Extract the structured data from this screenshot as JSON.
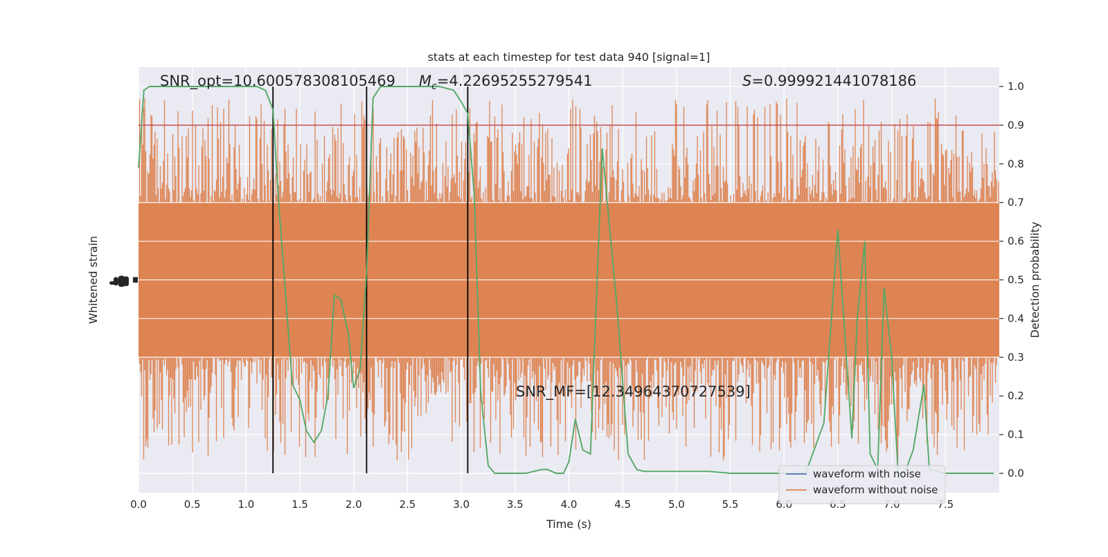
{
  "chart_data": {
    "type": "line",
    "title": "stats at each timestep for test data 940 [signal=1]",
    "xlabel": "Time (s)",
    "ylabel_left": "Whitened strain",
    "ylabel_right": "Detection probability",
    "xlim": [
      0,
      8
    ],
    "ylim_right": [
      -0.05,
      1.05
    ],
    "x_ticks": [
      0.0,
      0.5,
      1.0,
      1.5,
      2.0,
      2.5,
      3.0,
      3.5,
      4.0,
      4.5,
      5.0,
      5.5,
      6.0,
      6.5,
      7.0,
      7.5
    ],
    "x_tick_labels": [
      "0.0",
      "0.5",
      "1.0",
      "1.5",
      "2.0",
      "2.5",
      "3.0",
      "3.5",
      "4.0",
      "4.5",
      "5.0",
      "5.5",
      "6.0",
      "6.5",
      "7.0",
      "7.5"
    ],
    "y_right_ticks": [
      0.0,
      0.1,
      0.2,
      0.3,
      0.4,
      0.5,
      0.6,
      0.7,
      0.8,
      0.9,
      1.0
    ],
    "y_right_tick_labels": [
      "0.0",
      "0.1",
      "0.2",
      "0.3",
      "0.4",
      "0.5",
      "0.6",
      "0.7",
      "0.8",
      "0.9",
      "1.0"
    ],
    "grid": true,
    "legend_position": "lower-right",
    "annotations": {
      "snr_opt": "SNR_opt=10.600578308105469",
      "mc_symbol": "M",
      "mc_subscript": "c",
      "mc_value": "=4.22695255279541",
      "s_symbol": "S",
      "s_value": "=0.999921441078186",
      "snr_mf": "SNR_MF=[12.34964370727539]"
    },
    "threshold": 0.9,
    "vertical_lines_x": [
      1.25,
      2.12,
      3.06
    ],
    "strain_band": {
      "center": 0.5,
      "core_half_width": 0.2,
      "max_excursion": 0.5
    },
    "series": [
      {
        "name": "waveform with noise",
        "color": "#4c72b0",
        "x": [],
        "values": []
      },
      {
        "name": "waveform without noise",
        "color": "#dd8452",
        "x": [],
        "values": []
      },
      {
        "name": "",
        "color": "#55a868",
        "x": [
          0.0,
          0.05,
          0.1,
          0.2,
          0.4,
          0.6,
          0.8,
          1.0,
          1.1,
          1.18,
          1.25,
          1.3,
          1.37,
          1.43,
          1.5,
          1.56,
          1.63,
          1.7,
          1.76,
          1.82,
          1.88,
          1.95,
          2.0,
          2.06,
          2.12,
          2.18,
          2.25,
          2.3,
          2.4,
          2.6,
          2.8,
          2.93,
          3.0,
          3.06,
          3.12,
          3.18,
          3.25,
          3.31,
          3.37,
          3.45,
          3.6,
          3.75,
          3.8,
          3.88,
          3.95,
          4.0,
          4.06,
          4.13,
          4.2,
          4.31,
          4.45,
          4.55,
          4.63,
          4.7,
          4.8,
          5.0,
          5.1,
          5.3,
          5.5,
          6.0,
          6.2,
          6.37,
          6.5,
          6.63,
          6.68,
          6.75,
          6.8,
          6.87,
          6.93,
          7.0,
          7.06,
          7.12,
          7.2,
          7.3,
          7.35,
          7.5,
          7.8,
          7.95
        ],
        "values": [
          0.79,
          0.99,
          1.0,
          1.0,
          1.0,
          1.0,
          1.0,
          1.0,
          1.0,
          0.99,
          0.94,
          0.71,
          0.45,
          0.23,
          0.19,
          0.11,
          0.08,
          0.11,
          0.2,
          0.46,
          0.45,
          0.36,
          0.22,
          0.27,
          0.52,
          0.97,
          1.0,
          1.0,
          1.0,
          1.0,
          1.0,
          0.99,
          0.96,
          0.93,
          0.72,
          0.21,
          0.02,
          0.0,
          0.0,
          0.0,
          0.0,
          0.01,
          0.01,
          0.0,
          0.0,
          0.03,
          0.14,
          0.06,
          0.05,
          0.84,
          0.42,
          0.05,
          0.01,
          0.005,
          0.005,
          0.005,
          0.005,
          0.005,
          0.0,
          0.0,
          0.0,
          0.13,
          0.63,
          0.09,
          0.4,
          0.6,
          0.05,
          0.01,
          0.48,
          0.3,
          0.0,
          0.0,
          0.06,
          0.23,
          0.01,
          0.0,
          0.0,
          0.0
        ]
      }
    ]
  }
}
